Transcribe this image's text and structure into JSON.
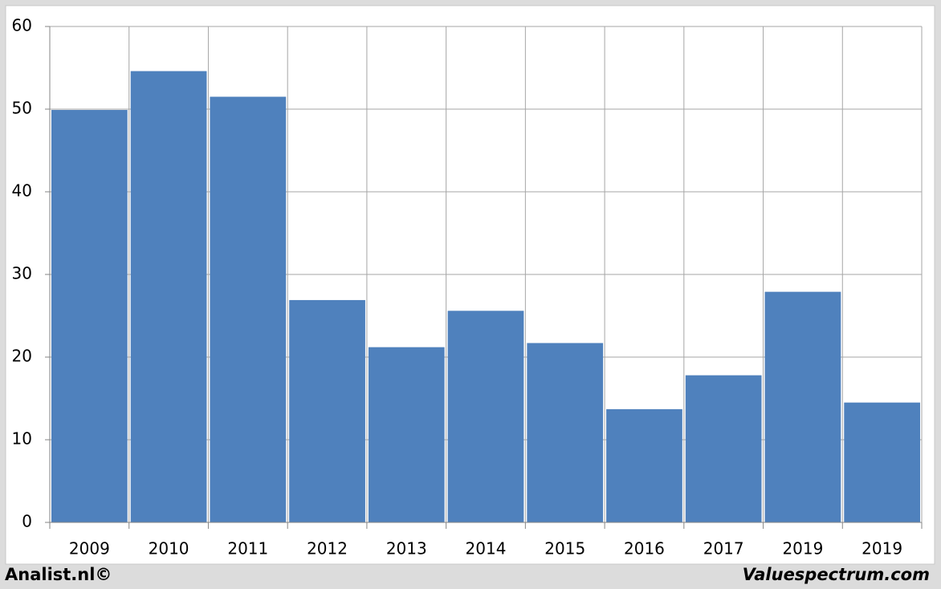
{
  "chart_data": {
    "type": "bar",
    "categories": [
      "2009",
      "2010",
      "2011",
      "2012",
      "2013",
      "2014",
      "2015",
      "2016",
      "2017",
      "2019",
      "2019"
    ],
    "values": [
      49.9,
      54.6,
      51.5,
      26.9,
      21.2,
      25.6,
      21.7,
      13.7,
      17.8,
      27.9,
      14.5
    ],
    "color": "#4f81bd",
    "ylim": [
      0,
      60
    ],
    "yticks": [
      0,
      10,
      20,
      30,
      40,
      50,
      60
    ],
    "grid": true
  },
  "footer": {
    "left": "Analist.nl©",
    "right": "Valuespectrum.com"
  }
}
